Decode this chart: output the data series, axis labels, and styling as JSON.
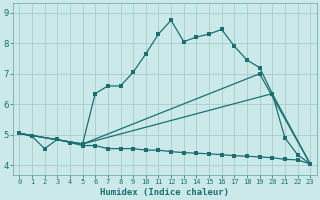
{
  "title": "",
  "xlabel": "Humidex (Indice chaleur)",
  "bg_color": "#cce9e9",
  "grid_color": "#aacccc",
  "line_color": "#1a7070",
  "xlim": [
    -0.5,
    23.5
  ],
  "ylim": [
    3.7,
    9.3
  ],
  "yticks": [
    4,
    5,
    6,
    7,
    8,
    9
  ],
  "xticks": [
    0,
    1,
    2,
    3,
    4,
    5,
    6,
    7,
    8,
    9,
    10,
    11,
    12,
    13,
    14,
    15,
    16,
    17,
    18,
    19,
    20,
    21,
    22,
    23
  ],
  "line1_x": [
    0,
    1,
    2,
    3,
    4,
    5,
    6,
    7,
    8,
    9,
    10,
    11,
    12,
    13,
    14,
    15,
    16,
    17,
    18,
    19,
    20,
    21,
    22,
    23
  ],
  "line1_y": [
    5.05,
    4.95,
    4.55,
    4.85,
    4.75,
    4.65,
    4.65,
    4.55,
    4.55,
    4.55,
    4.5,
    4.5,
    4.45,
    4.42,
    4.4,
    4.38,
    4.35,
    4.32,
    4.3,
    4.28,
    4.25,
    4.2,
    4.18,
    4.05
  ],
  "line2_x": [
    0,
    5,
    6,
    7,
    8,
    9,
    10,
    11,
    12,
    13,
    14,
    15,
    16,
    17,
    18,
    19,
    20,
    21,
    22,
    23
  ],
  "line2_y": [
    5.05,
    4.7,
    6.35,
    6.6,
    6.6,
    7.05,
    7.65,
    8.3,
    8.75,
    8.05,
    8.2,
    8.3,
    8.45,
    7.9,
    7.45,
    7.2,
    6.35,
    4.9,
    4.35,
    4.05
  ],
  "line3_x": [
    0,
    5,
    20,
    23
  ],
  "line3_y": [
    5.05,
    4.7,
    6.35,
    4.05
  ],
  "line4_x": [
    0,
    5,
    19,
    23
  ],
  "line4_y": [
    5.05,
    4.7,
    7.0,
    4.05
  ],
  "marker_size": 2.5,
  "linewidth": 0.9
}
